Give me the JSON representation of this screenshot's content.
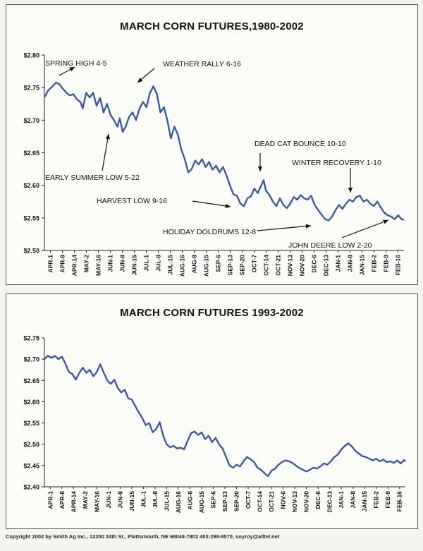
{
  "colors": {
    "line": "#3d5a99",
    "axis": "#222222",
    "text": "#111111"
  },
  "footer": "Copyright 2002 by Smith Ag Inc., 12200 24th St., Plattsmouth, NE 68048-7802 402-298-8570, soyroy@alltel.net",
  "chart_data": [
    {
      "type": "line",
      "title": "MARCH CORN FUTURES,1980-2002",
      "ylim": [
        2.5,
        2.8
      ],
      "yticks": [
        "$2.50",
        "$2.55",
        "$2.60",
        "$2.65",
        "$2.70",
        "$2.75",
        "$2.80"
      ],
      "categories": [
        "APR-1",
        "APR-8",
        "APR-14",
        "MAY-2",
        "MAY-16",
        "JUN-1",
        "JUN-8",
        "JUN-15",
        "JUL-1",
        "JUL-8",
        "JUL-15",
        "AUG-16",
        "AUG-8",
        "AUG-15",
        "SEP-6",
        "SEP-13",
        "SEP-20",
        "OCT-7",
        "OCT-14",
        "OCT-21",
        "NOV-13",
        "NOV-20",
        "DEC-6",
        "DEC-13",
        "JAN-1",
        "JAN-8",
        "JAN-15",
        "FEB-2",
        "FEB-9",
        "FEB-16"
      ],
      "series": [
        {
          "name": "March Corn Futures 1980-2002",
          "points": [
            [
              0,
              2.735
            ],
            [
              0.3,
              2.745
            ],
            [
              0.7,
              2.752
            ],
            [
              1.0,
              2.758
            ],
            [
              1.3,
              2.755
            ],
            [
              1.6,
              2.748
            ],
            [
              1.9,
              2.742
            ],
            [
              2.2,
              2.738
            ],
            [
              2.5,
              2.74
            ],
            [
              2.8,
              2.732
            ],
            [
              3.1,
              2.728
            ],
            [
              3.3,
              2.718
            ],
            [
              3.6,
              2.742
            ],
            [
              3.9,
              2.735
            ],
            [
              4.2,
              2.742
            ],
            [
              4.5,
              2.722
            ],
            [
              4.8,
              2.734
            ],
            [
              5.1,
              2.712
            ],
            [
              5.4,
              2.725
            ],
            [
              5.7,
              2.708
            ],
            [
              6.0,
              2.7
            ],
            [
              6.3,
              2.69
            ],
            [
              6.5,
              2.703
            ],
            [
              6.75,
              2.682
            ],
            [
              7.0,
              2.69
            ],
            [
              7.3,
              2.705
            ],
            [
              7.6,
              2.712
            ],
            [
              7.9,
              2.7
            ],
            [
              8.2,
              2.718
            ],
            [
              8.5,
              2.728
            ],
            [
              8.8,
              2.72
            ],
            [
              9.1,
              2.742
            ],
            [
              9.4,
              2.752
            ],
            [
              9.7,
              2.74
            ],
            [
              10.0,
              2.712
            ],
            [
              10.3,
              2.72
            ],
            [
              10.6,
              2.7
            ],
            [
              10.9,
              2.672
            ],
            [
              11.2,
              2.69
            ],
            [
              11.5,
              2.678
            ],
            [
              11.8,
              2.655
            ],
            [
              12.1,
              2.64
            ],
            [
              12.4,
              2.62
            ],
            [
              12.7,
              2.625
            ],
            [
              13.0,
              2.638
            ],
            [
              13.3,
              2.632
            ],
            [
              13.6,
              2.64
            ],
            [
              13.9,
              2.628
            ],
            [
              14.2,
              2.636
            ],
            [
              14.5,
              2.624
            ],
            [
              14.8,
              2.63
            ],
            [
              15.1,
              2.62
            ],
            [
              15.4,
              2.628
            ],
            [
              15.7,
              2.615
            ],
            [
              16.0,
              2.6
            ],
            [
              16.3,
              2.586
            ],
            [
              16.6,
              2.584
            ],
            [
              16.9,
              2.572
            ],
            [
              17.2,
              2.568
            ],
            [
              17.5,
              2.58
            ],
            [
              17.8,
              2.583
            ],
            [
              18.1,
              2.595
            ],
            [
              18.4,
              2.588
            ],
            [
              18.7,
              2.6
            ],
            [
              18.9,
              2.608
            ],
            [
              19.1,
              2.592
            ],
            [
              19.4,
              2.585
            ],
            [
              19.7,
              2.575
            ],
            [
              20.0,
              2.568
            ],
            [
              20.3,
              2.58
            ],
            [
              20.6,
              2.57
            ],
            [
              20.9,
              2.565
            ],
            [
              21.2,
              2.572
            ],
            [
              21.5,
              2.582
            ],
            [
              21.8,
              2.578
            ],
            [
              22.1,
              2.585
            ],
            [
              22.4,
              2.58
            ],
            [
              22.7,
              2.578
            ],
            [
              23.0,
              2.584
            ],
            [
              23.3,
              2.57
            ],
            [
              23.6,
              2.562
            ],
            [
              23.9,
              2.555
            ],
            [
              24.2,
              2.548
            ],
            [
              24.5,
              2.546
            ],
            [
              24.8,
              2.552
            ],
            [
              25.1,
              2.562
            ],
            [
              25.4,
              2.57
            ],
            [
              25.7,
              2.564
            ],
            [
              26.0,
              2.572
            ],
            [
              26.3,
              2.578
            ],
            [
              26.6,
              2.575
            ],
            [
              26.9,
              2.582
            ],
            [
              27.2,
              2.584
            ],
            [
              27.5,
              2.575
            ],
            [
              27.8,
              2.578
            ],
            [
              28.1,
              2.572
            ],
            [
              28.4,
              2.568
            ],
            [
              28.7,
              2.575
            ],
            [
              29.0,
              2.566
            ],
            [
              29.3,
              2.558
            ],
            [
              29.6,
              2.554
            ],
            [
              29.9,
              2.552
            ],
            [
              30.2,
              2.548
            ],
            [
              30.5,
              2.554
            ],
            [
              30.8,
              2.548
            ],
            [
              31.0,
              2.547
            ]
          ]
        }
      ],
      "annotations": [
        {
          "label": "SPRING HIGH 4-5"
        },
        {
          "label": "WEATHER RALLY 6-16"
        },
        {
          "label": "DEAD CAT BOUNCE 10-10"
        },
        {
          "label": "WINTER RECOVERY 1-10"
        },
        {
          "label": "EARLY SUMMER LOW 5-22"
        },
        {
          "label": "HARVEST LOW  9-16"
        },
        {
          "label": "HOLIDAY DOLDRUMS 12-8"
        },
        {
          "label": "JOHN DEERE LOW 2-20"
        }
      ]
    },
    {
      "type": "line",
      "title": "MARCH CORN FUTURES 1993-2002",
      "ylim": [
        2.4,
        2.75
      ],
      "yticks": [
        "$2.40",
        "$2.45",
        "$2.50",
        "$2.55",
        "$2.60",
        "$2.65",
        "$2.70",
        "$2.75"
      ],
      "categories": [
        "APR-1",
        "APR-8",
        "APR-14",
        "MAY-2",
        "MAY-16",
        "JUN-1",
        "JUN-8",
        "JUN-15",
        "JUL-1",
        "JUL-8",
        "JUL-15",
        "AUG-16",
        "AUG-8",
        "AUG-15",
        "SEP-6",
        "SEP-13",
        "SEP-20",
        "OCT-7",
        "OCT-14",
        "OCT-21",
        "NOV-6",
        "NOV-13",
        "NOV-20",
        "DEC-6",
        "DEC-13",
        "JAN-1",
        "JAN-8",
        "JAN-15",
        "FEB-2",
        "FEB-9",
        "FEB-16"
      ],
      "series": [
        {
          "name": "March Corn Futures 1993-2002",
          "points": [
            [
              0,
              2.7
            ],
            [
              0.3,
              2.708
            ],
            [
              0.6,
              2.703
            ],
            [
              0.9,
              2.708
            ],
            [
              1.2,
              2.7
            ],
            [
              1.5,
              2.706
            ],
            [
              1.8,
              2.69
            ],
            [
              2.1,
              2.67
            ],
            [
              2.4,
              2.665
            ],
            [
              2.7,
              2.652
            ],
            [
              3.0,
              2.668
            ],
            [
              3.3,
              2.68
            ],
            [
              3.6,
              2.668
            ],
            [
              3.9,
              2.675
            ],
            [
              4.2,
              2.66
            ],
            [
              4.5,
              2.67
            ],
            [
              4.8,
              2.688
            ],
            [
              5.1,
              2.668
            ],
            [
              5.4,
              2.65
            ],
            [
              5.7,
              2.642
            ],
            [
              6.0,
              2.652
            ],
            [
              6.3,
              2.632
            ],
            [
              6.6,
              2.622
            ],
            [
              6.9,
              2.628
            ],
            [
              7.2,
              2.608
            ],
            [
              7.5,
              2.605
            ],
            [
              7.8,
              2.59
            ],
            [
              8.1,
              2.575
            ],
            [
              8.4,
              2.562
            ],
            [
              8.7,
              2.545
            ],
            [
              9.0,
              2.55
            ],
            [
              9.3,
              2.528
            ],
            [
              9.6,
              2.536
            ],
            [
              9.9,
              2.552
            ],
            [
              10.2,
              2.52
            ],
            [
              10.5,
              2.5
            ],
            [
              10.8,
              2.493
            ],
            [
              11.1,
              2.496
            ],
            [
              11.4,
              2.49
            ],
            [
              11.7,
              2.492
            ],
            [
              12.0,
              2.488
            ],
            [
              12.3,
              2.508
            ],
            [
              12.6,
              2.526
            ],
            [
              12.9,
              2.53
            ],
            [
              13.2,
              2.522
            ],
            [
              13.5,
              2.528
            ],
            [
              13.8,
              2.512
            ],
            [
              14.1,
              2.52
            ],
            [
              14.4,
              2.505
            ],
            [
              14.7,
              2.515
            ],
            [
              15.0,
              2.5
            ],
            [
              15.3,
              2.49
            ],
            [
              15.6,
              2.47
            ],
            [
              15.9,
              2.45
            ],
            [
              16.2,
              2.445
            ],
            [
              16.5,
              2.452
            ],
            [
              16.8,
              2.448
            ],
            [
              17.1,
              2.46
            ],
            [
              17.4,
              2.47
            ],
            [
              17.7,
              2.465
            ],
            [
              18.0,
              2.458
            ],
            [
              18.3,
              2.445
            ],
            [
              18.6,
              2.44
            ],
            [
              18.9,
              2.432
            ],
            [
              19.2,
              2.425
            ],
            [
              19.5,
              2.438
            ],
            [
              19.8,
              2.442
            ],
            [
              20.1,
              2.452
            ],
            [
              20.4,
              2.458
            ],
            [
              20.7,
              2.462
            ],
            [
              21.0,
              2.46
            ],
            [
              21.3,
              2.456
            ],
            [
              21.6,
              2.45
            ],
            [
              21.9,
              2.444
            ],
            [
              22.2,
              2.44
            ],
            [
              22.5,
              2.436
            ],
            [
              22.8,
              2.44
            ],
            [
              23.1,
              2.445
            ],
            [
              23.4,
              2.443
            ],
            [
              23.7,
              2.448
            ],
            [
              24.0,
              2.455
            ],
            [
              24.3,
              2.452
            ],
            [
              24.6,
              2.46
            ],
            [
              24.9,
              2.47
            ],
            [
              25.2,
              2.476
            ],
            [
              25.5,
              2.488
            ],
            [
              25.8,
              2.496
            ],
            [
              26.1,
              2.502
            ],
            [
              26.4,
              2.495
            ],
            [
              26.7,
              2.485
            ],
            [
              27.0,
              2.478
            ],
            [
              27.3,
              2.472
            ],
            [
              27.6,
              2.47
            ],
            [
              27.9,
              2.466
            ],
            [
              28.2,
              2.462
            ],
            [
              28.5,
              2.466
            ],
            [
              28.8,
              2.46
            ],
            [
              29.1,
              2.464
            ],
            [
              29.4,
              2.458
            ],
            [
              29.7,
              2.46
            ],
            [
              30.0,
              2.456
            ],
            [
              30.3,
              2.462
            ],
            [
              30.6,
              2.455
            ],
            [
              30.9,
              2.463
            ],
            [
              31.0,
              2.46
            ]
          ]
        }
      ]
    }
  ]
}
